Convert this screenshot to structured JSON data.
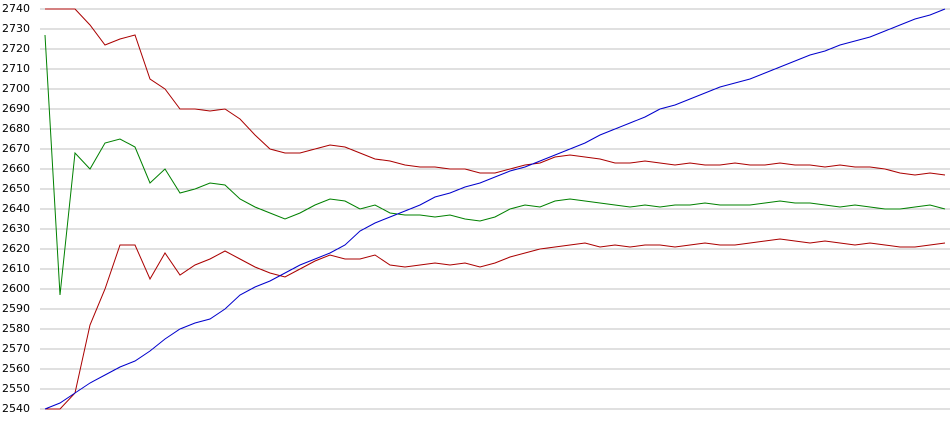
{
  "chart_data": {
    "type": "line",
    "ylim": [
      2540,
      2740
    ],
    "yticks": [
      2540,
      2550,
      2560,
      2570,
      2580,
      2590,
      2600,
      2610,
      2620,
      2630,
      2640,
      2650,
      2660,
      2670,
      2680,
      2690,
      2700,
      2710,
      2720,
      2730,
      2740
    ],
    "grid": true,
    "series": [
      {
        "color": "#aa0000",
        "values": [
          2740,
          2740,
          2740,
          2732,
          2722,
          2725,
          2727,
          2705,
          2700,
          2690,
          2690,
          2689,
          2690,
          2685,
          2677,
          2670,
          2668,
          2668,
          2670,
          2672,
          2671,
          2668,
          2665,
          2664,
          2662,
          2661,
          2661,
          2660,
          2660,
          2658,
          2658,
          2660,
          2662,
          2663,
          2666,
          2667,
          2666,
          2665,
          2663,
          2663,
          2664,
          2663,
          2662,
          2663,
          2662,
          2662,
          2663,
          2662,
          2662,
          2663,
          2662,
          2662,
          2661,
          2662,
          2661,
          2661,
          2660,
          2658,
          2657,
          2658,
          2657
        ]
      },
      {
        "color": "#008000",
        "values": [
          2727,
          2597,
          2668,
          2660,
          2673,
          2675,
          2671,
          2653,
          2660,
          2648,
          2650,
          2653,
          2652,
          2645,
          2641,
          2638,
          2635,
          2638,
          2642,
          2645,
          2644,
          2640,
          2642,
          2638,
          2637,
          2637,
          2636,
          2637,
          2635,
          2634,
          2636,
          2640,
          2642,
          2641,
          2644,
          2645,
          2644,
          2643,
          2642,
          2641,
          2642,
          2641,
          2642,
          2642,
          2643,
          2642,
          2642,
          2642,
          2643,
          2644,
          2643,
          2643,
          2642,
          2641,
          2642,
          2641,
          2640,
          2640,
          2641,
          2642,
          2640
        ]
      },
      {
        "color": "#aa0000",
        "values": [
          2540,
          2540,
          2548,
          2582,
          2600,
          2622,
          2622,
          2605,
          2618,
          2607,
          2612,
          2615,
          2619,
          2615,
          2611,
          2608,
          2606,
          2610,
          2614,
          2617,
          2615,
          2615,
          2617,
          2612,
          2611,
          2612,
          2613,
          2612,
          2613,
          2611,
          2613,
          2616,
          2618,
          2620,
          2621,
          2622,
          2623,
          2621,
          2622,
          2621,
          2622,
          2622,
          2621,
          2622,
          2623,
          2622,
          2622,
          2623,
          2624,
          2625,
          2624,
          2623,
          2624,
          2623,
          2622,
          2623,
          2622,
          2621,
          2621,
          2622,
          2623
        ]
      },
      {
        "color": "#0000cc",
        "values": [
          2540,
          2543,
          2548,
          2553,
          2557,
          2561,
          2564,
          2569,
          2575,
          2580,
          2583,
          2585,
          2590,
          2597,
          2601,
          2604,
          2608,
          2612,
          2615,
          2618,
          2622,
          2629,
          2633,
          2636,
          2639,
          2642,
          2646,
          2648,
          2651,
          2653,
          2656,
          2659,
          2661,
          2664,
          2667,
          2670,
          2673,
          2677,
          2680,
          2683,
          2686,
          2690,
          2692,
          2695,
          2698,
          2701,
          2703,
          2705,
          2708,
          2711,
          2714,
          2717,
          2719,
          2722,
          2724,
          2726,
          2729,
          2732,
          2735,
          2737,
          2740
        ]
      }
    ]
  }
}
